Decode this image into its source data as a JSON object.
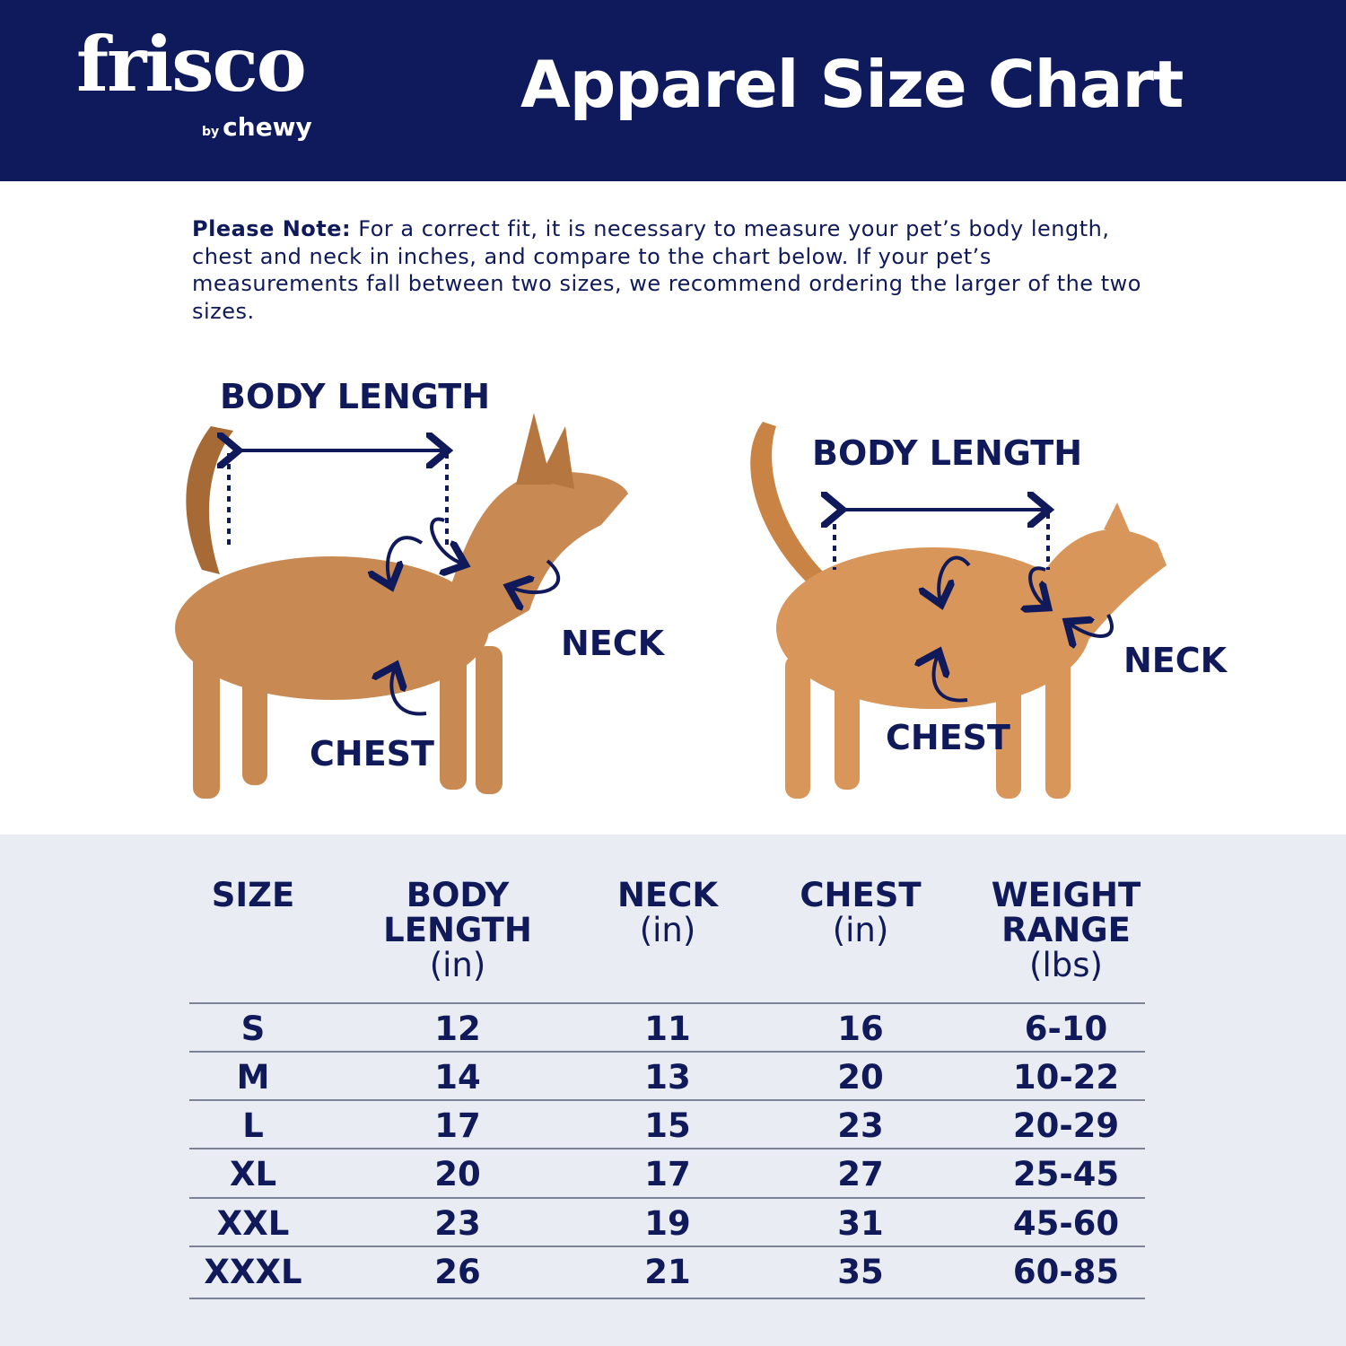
{
  "header": {
    "logo_main": "frisco",
    "logo_by": "by",
    "logo_brand": "chewy",
    "title": "Apparel Size Chart"
  },
  "note": {
    "bold": "Please Note:",
    "text": " For a correct fit, it is necessary to measure your pet’s body length, chest and neck in inches, and compare to the chart below. If your pet’s measurements fall between two sizes, we recommend ordering the larger of the two sizes."
  },
  "dog_labels": {
    "body_length": "BODY LENGTH",
    "neck": "NECK",
    "chest": "CHEST"
  },
  "cat_labels": {
    "body_length": "BODY LENGTH",
    "neck": "NECK",
    "chest": "CHEST"
  },
  "colors": {
    "navy": "#0f1a5c",
    "table_bg": "#e9ecf2"
  },
  "table": {
    "headers": [
      {
        "title": "SIZE",
        "unit": ""
      },
      {
        "title": "BODY LENGTH",
        "unit": "(in)"
      },
      {
        "title": "NECK",
        "unit": "(in)"
      },
      {
        "title": "CHEST",
        "unit": "(in)"
      },
      {
        "title": "WEIGHT RANGE",
        "unit": "(lbs)"
      }
    ],
    "rows": [
      [
        "S",
        "12",
        "11",
        "16",
        "6-10"
      ],
      [
        "M",
        "14",
        "13",
        "20",
        "10-22"
      ],
      [
        "L",
        "17",
        "15",
        "23",
        "20-29"
      ],
      [
        "XL",
        "20",
        "17",
        "27",
        "25-45"
      ],
      [
        "XXL",
        "23",
        "19",
        "31",
        "45-60"
      ],
      [
        "XXXL",
        "26",
        "21",
        "35",
        "60-85"
      ]
    ]
  }
}
